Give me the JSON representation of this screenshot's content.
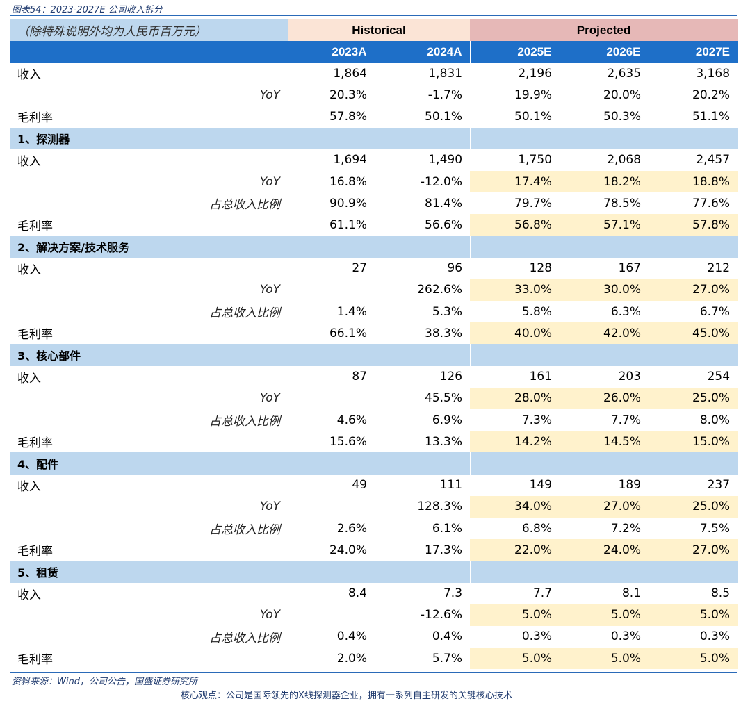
{
  "title": "图表54：2023-2027E 公司收入拆分",
  "unit_label": "（除特殊说明外均为人民币百万元）",
  "group_headers": {
    "historical": "Historical",
    "projected": "Projected"
  },
  "years": [
    "2023A",
    "2024A",
    "2025E",
    "2026E",
    "2027E"
  ],
  "summary": {
    "revenue": {
      "label": "收入",
      "values": [
        "1,864",
        "1,831",
        "2,196",
        "2,635",
        "3,168"
      ]
    },
    "yoy": {
      "label": "YoY",
      "values": [
        "20.3%",
        "-1.7%",
        "19.9%",
        "20.0%",
        "20.2%"
      ]
    },
    "margin": {
      "label": "毛利率",
      "values": [
        "57.8%",
        "50.1%",
        "50.1%",
        "50.3%",
        "51.1%"
      ]
    }
  },
  "segments": [
    {
      "name": "1、探测器",
      "revenue": {
        "label": "收入",
        "values": [
          "1,694",
          "1,490",
          "1,750",
          "2,068",
          "2,457"
        ]
      },
      "yoy": {
        "label": "YoY",
        "values": [
          "16.8%",
          "-12.0%",
          "17.4%",
          "18.2%",
          "18.8%"
        ]
      },
      "share": {
        "label": "占总收入比例",
        "values": [
          "90.9%",
          "81.4%",
          "79.7%",
          "78.5%",
          "77.6%"
        ]
      },
      "margin": {
        "label": "毛利率",
        "values": [
          "61.1%",
          "56.6%",
          "56.8%",
          "57.1%",
          "57.8%"
        ]
      }
    },
    {
      "name": "2、解决方案/技术服务",
      "revenue": {
        "label": "收入",
        "values": [
          "27",
          "96",
          "128",
          "167",
          "212"
        ]
      },
      "yoy": {
        "label": "YoY",
        "values": [
          "",
          "262.6%",
          "33.0%",
          "30.0%",
          "27.0%"
        ]
      },
      "share": {
        "label": "占总收入比例",
        "values": [
          "1.4%",
          "5.3%",
          "5.8%",
          "6.3%",
          "6.7%"
        ]
      },
      "margin": {
        "label": "毛利率",
        "values": [
          "66.1%",
          "38.3%",
          "40.0%",
          "42.0%",
          "45.0%"
        ]
      }
    },
    {
      "name": "3、核心部件",
      "revenue": {
        "label": "收入",
        "values": [
          "87",
          "126",
          "161",
          "203",
          "254"
        ]
      },
      "yoy": {
        "label": "YoY",
        "values": [
          "",
          "45.5%",
          "28.0%",
          "26.0%",
          "25.0%"
        ]
      },
      "share": {
        "label": "占总收入比例",
        "values": [
          "4.6%",
          "6.9%",
          "7.3%",
          "7.7%",
          "8.0%"
        ]
      },
      "margin": {
        "label": "毛利率",
        "values": [
          "15.6%",
          "13.3%",
          "14.2%",
          "14.5%",
          "15.0%"
        ]
      }
    },
    {
      "name": "4、配件",
      "revenue": {
        "label": "收入",
        "values": [
          "49",
          "111",
          "149",
          "189",
          "237"
        ]
      },
      "yoy": {
        "label": "YoY",
        "values": [
          "",
          "128.3%",
          "34.0%",
          "27.0%",
          "25.0%"
        ]
      },
      "share": {
        "label": "占总收入比例",
        "values": [
          "2.6%",
          "6.1%",
          "6.8%",
          "7.2%",
          "7.5%"
        ]
      },
      "margin": {
        "label": "毛利率",
        "values": [
          "24.0%",
          "17.3%",
          "22.0%",
          "24.0%",
          "27.0%"
        ]
      }
    },
    {
      "name": "5、租赁",
      "revenue": {
        "label": "收入",
        "values": [
          "8.4",
          "7.3",
          "7.7",
          "8.1",
          "8.5"
        ]
      },
      "yoy": {
        "label": "YoY",
        "values": [
          "",
          "-12.6%",
          "5.0%",
          "5.0%",
          "5.0%"
        ]
      },
      "share": {
        "label": "占总收入比例",
        "values": [
          "0.4%",
          "0.4%",
          "0.3%",
          "0.3%",
          "0.3%"
        ]
      },
      "margin": {
        "label": "毛利率",
        "values": [
          "2.0%",
          "5.7%",
          "5.0%",
          "5.0%",
          "5.0%"
        ]
      }
    }
  ],
  "source": "资料来源：Wind，公司公告，国盛证券研究所",
  "cut_text": "核心观点：公司是国际领先的X线探测器企业，拥有一系列自主研发的关键核心技术"
}
